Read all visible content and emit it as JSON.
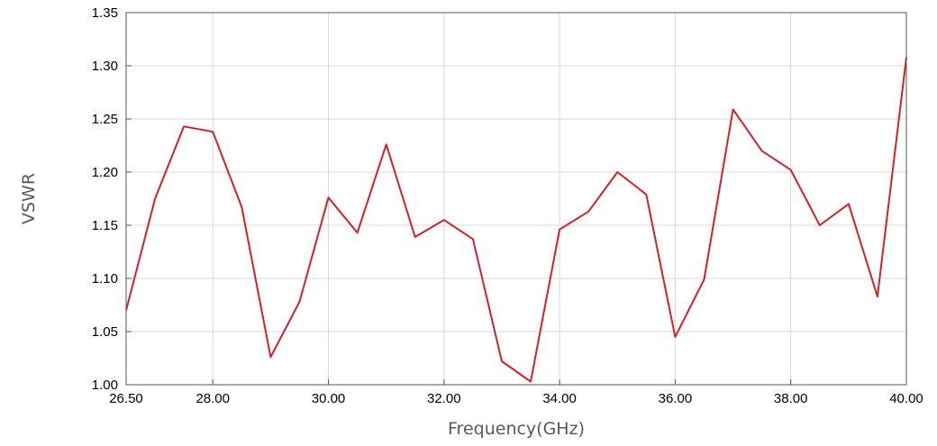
{
  "chart_data": {
    "type": "line",
    "title": "",
    "xlabel": "Frequency(GHz)",
    "ylabel": "VSWR",
    "xlim": [
      26.5,
      40.0
    ],
    "ylim": [
      1.0,
      1.35
    ],
    "x_ticks": [
      26.5,
      28.0,
      30.0,
      32.0,
      34.0,
      36.0,
      38.0,
      40.0
    ],
    "x_tick_labels": [
      "26.50",
      "28.00",
      "30.00",
      "32.00",
      "34.00",
      "36.00",
      "38.00",
      "40.00"
    ],
    "y_ticks": [
      1.0,
      1.05,
      1.1,
      1.15,
      1.2,
      1.25,
      1.3,
      1.35
    ],
    "y_tick_labels": [
      "1.00",
      "1.05",
      "1.10",
      "1.15",
      "1.20",
      "1.25",
      "1.30",
      "1.35"
    ],
    "grid": true,
    "legend": "none",
    "series": [
      {
        "color": "#d4202a",
        "x": [
          26.5,
          27.0,
          27.5,
          28.0,
          28.5,
          29.0,
          29.5,
          30.0,
          30.5,
          31.0,
          31.5,
          32.0,
          32.5,
          33.0,
          33.5,
          34.0,
          34.5,
          35.0,
          35.5,
          36.0,
          36.5,
          37.0,
          37.5,
          38.0,
          38.5,
          39.0,
          39.5,
          40.0
        ],
        "y": [
          1.07,
          1.175,
          1.243,
          1.238,
          1.167,
          1.026,
          1.078,
          1.176,
          1.143,
          1.226,
          1.139,
          1.155,
          1.137,
          1.022,
          1.003,
          1.146,
          1.163,
          1.2,
          1.179,
          1.045,
          1.099,
          1.259,
          1.22,
          1.202,
          1.15,
          1.17,
          1.083,
          1.308
        ]
      }
    ]
  }
}
